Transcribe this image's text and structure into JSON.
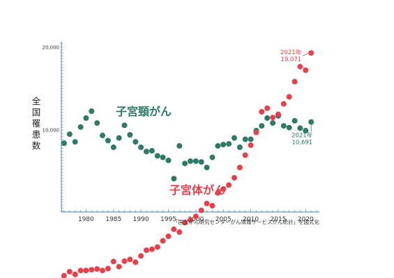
{
  "chart_data": {
    "type": "scatter",
    "ylabel": "全国罹患数",
    "yscale": "log",
    "ylim": [
      2700,
      20000
    ],
    "xlim": [
      1975.5,
      2022.5
    ],
    "y_ticks": [
      {
        "value": 20000,
        "label": "20,000"
      },
      {
        "value": 10000,
        "label": "10,000"
      }
    ],
    "x_ticks": [
      1980,
      1985,
      1990,
      1995,
      2000,
      2005,
      2010,
      2015,
      2020
    ],
    "source": "「国立がん研究センターがん情報サービスがん統計」を図式化",
    "series": [
      {
        "name": "子宮頸がん",
        "color": "#2e7a68",
        "x": [
          1976,
          1977,
          1978,
          1979,
          1980,
          1981,
          1982,
          1983,
          1984,
          1985,
          1986,
          1987,
          1988,
          1989,
          1990,
          1991,
          1992,
          1993,
          1994,
          1995,
          1996,
          1997,
          1998,
          1999,
          2000,
          2001,
          2002,
          2003,
          2004,
          2005,
          2006,
          2007,
          2008,
          2009,
          2010,
          2011,
          2012,
          2013,
          2014,
          2015,
          2016,
          2017,
          2018,
          2019,
          2020,
          2021
        ],
        "values": [
          8950,
          9650,
          9050,
          10250,
          11050,
          11700,
          10600,
          9550,
          9150,
          8650,
          9350,
          10400,
          9600,
          9050,
          8650,
          8350,
          8400,
          8050,
          7950,
          7750,
          6650,
          8750,
          7550,
          7700,
          7700,
          7650,
          7300,
          7950,
          8750,
          8850,
          8900,
          9350,
          8650,
          9250,
          9250,
          9950,
          10350,
          11050,
          10600,
          11250,
          10350,
          10200,
          10800,
          10150,
          9950,
          10691
        ]
      },
      {
        "name": "子宮体がん",
        "color": "#e8404a",
        "x": [
          1976,
          1977,
          1978,
          1979,
          1980,
          1981,
          1982,
          1983,
          1984,
          1985,
          1986,
          1987,
          1988,
          1989,
          1990,
          1991,
          1992,
          1993,
          1994,
          1995,
          1996,
          1997,
          1998,
          1999,
          2000,
          2001,
          2002,
          2003,
          2004,
          2005,
          2006,
          2007,
          2008,
          2009,
          2010,
          2011,
          2012,
          2013,
          2014,
          2015,
          2016,
          2017,
          2018,
          2019,
          2020,
          2021
        ],
        "values": [
          2950,
          3050,
          2980,
          3080,
          3080,
          3100,
          3120,
          3080,
          3130,
          3320,
          3180,
          3330,
          3380,
          3300,
          3480,
          3650,
          3680,
          3750,
          3950,
          4100,
          4350,
          4250,
          4600,
          4700,
          4850,
          5100,
          5400,
          5300,
          5900,
          6100,
          6300,
          6700,
          7300,
          8100,
          8800,
          9800,
          11650,
          12000,
          11100,
          11400,
          12450,
          13200,
          15000,
          17000,
          16500,
          19071
        ]
      }
    ],
    "series_labels": [
      "子宮頸がん",
      "子宮体がん"
    ],
    "annotations": [
      {
        "series": "子宮体がん",
        "year": 2021,
        "lines": [
          "2021年",
          "19,071"
        ]
      },
      {
        "series": "子宮頸がん",
        "year": 2021,
        "lines": [
          "2021年",
          "10,691"
        ]
      }
    ]
  }
}
